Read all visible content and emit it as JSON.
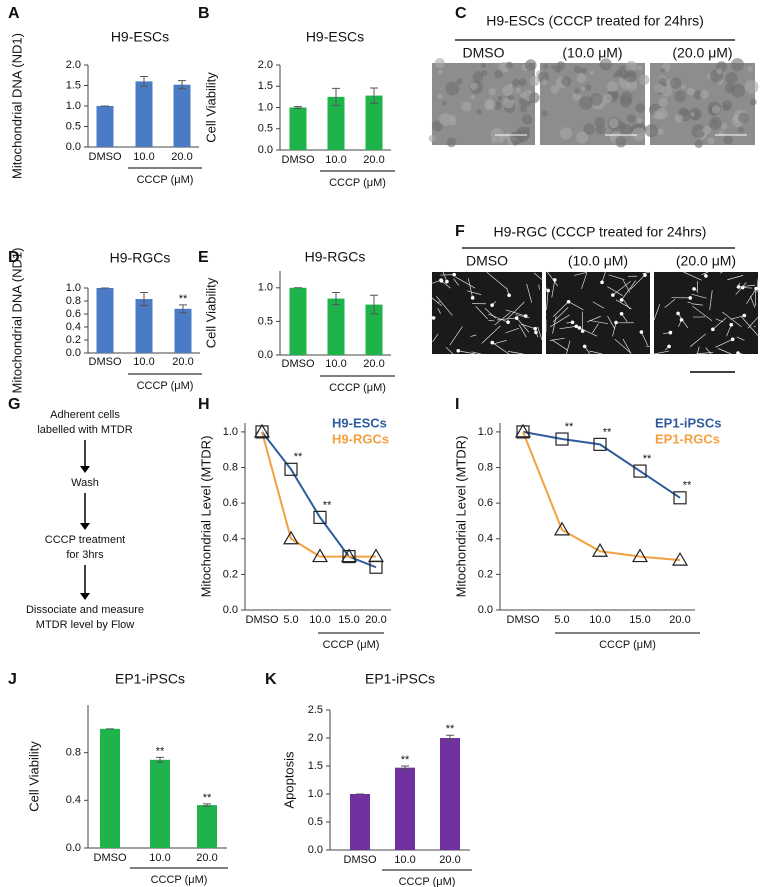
{
  "panels": [
    "A",
    "B",
    "C",
    "D",
    "E",
    "F",
    "G",
    "H",
    "I",
    "J",
    "K"
  ],
  "images": [
    {
      "title": "H9-ESCs (CCCP treated for 24hrs)",
      "labels": [
        "DMSO",
        "(10.0 μM)",
        "(20.0 μM)"
      ]
    },
    {
      "title": "H9-RGC (CCCP treated for 24hrs)",
      "labels": [
        "DMSO",
        "(10.0 μM)",
        "(20.0 μM)"
      ]
    }
  ],
  "flow": {
    "steps": [
      [
        "Adherent cells",
        "labelled with MTDR"
      ],
      [
        "Wash"
      ],
      [
        "CCCP treatment",
        "for 3hrs"
      ],
      [
        "Dissociate and measure",
        "MTDR level by Flow"
      ]
    ]
  },
  "chart_data": [
    {
      "type": "bar",
      "title": "H9-ESCs",
      "ylabel": "Mitochondrial DNA (ND1)",
      "categories": [
        "DMSO",
        "10.0",
        "20.0"
      ],
      "group_label": "CCCP (μM)",
      "values": [
        1.0,
        1.6,
        1.52
      ],
      "errors": [
        0.0,
        0.12,
        0.1
      ],
      "color": "#4a7bc4",
      "ylim": [
        0,
        2.0
      ],
      "yticks": [
        {
          "value": 0,
          "label": "0.0"
        },
        0.5,
        {
          "value": 1,
          "label": "1.0"
        },
        1.5,
        {
          "value": 2,
          "label": "2.0"
        }
      ]
    },
    {
      "type": "bar",
      "title": "H9-ESCs",
      "ylabel": "Cell Viability",
      "categories": [
        "DMSO",
        "10.0",
        "20.0"
      ],
      "group_label": "CCCP (μM)",
      "values": [
        1.0,
        1.25,
        1.28
      ],
      "errors": [
        0.02,
        0.2,
        0.18
      ],
      "color": "#1fb34b",
      "ylim": [
        0,
        2.0
      ],
      "yticks": [
        {
          "value": 0,
          "label": "0.0"
        },
        0.5,
        {
          "value": 1,
          "label": "1.0"
        },
        1.5,
        {
          "value": 2,
          "label": "2.0"
        }
      ]
    },
    {
      "type": "bar",
      "title": "H9-RGCs",
      "ylabel": "Mitochondrial DNA (ND1)",
      "categories": [
        "DMSO",
        "10.0",
        "20.0"
      ],
      "group_label": "CCCP (μM)",
      "values": [
        1.0,
        0.83,
        0.68
      ],
      "errors": [
        0.0,
        0.1,
        0.06
      ],
      "significance": [
        null,
        null,
        "**"
      ],
      "color": "#4a7bc4",
      "ylim": [
        0,
        1.0
      ],
      "yticks": [
        {
          "value": 0,
          "label": "0.0"
        },
        0.2,
        0.4,
        0.6,
        0.8,
        {
          "value": 1,
          "label": "1.0"
        }
      ]
    },
    {
      "type": "bar",
      "title": "H9-RGCs",
      "ylabel": "Cell Viability",
      "categories": [
        "DMSO",
        "10.0",
        "20.0"
      ],
      "group_label": "CCCP (μM)",
      "values": [
        1.0,
        0.84,
        0.75
      ],
      "errors": [
        0.0,
        0.09,
        0.14
      ],
      "color": "#1fb34b",
      "ylim": [
        0,
        1.25
      ],
      "yticks": [
        {
          "value": 0,
          "label": "0.0"
        },
        0.5,
        {
          "value": 1,
          "label": "1.0"
        }
      ]
    },
    {
      "type": "line",
      "ylabel": "Mitochondrial Level (MTDR)",
      "categories": [
        "DMSO",
        "5.0",
        "10.0",
        "15.0",
        "20.0"
      ],
      "group_label": "CCCP (μM)",
      "series": [
        {
          "name": "H9-ESCs",
          "color": "#2e5c9e",
          "marker": "square",
          "values": [
            1.0,
            0.79,
            0.52,
            0.3,
            0.24
          ],
          "significance": [
            null,
            "**",
            "**",
            null,
            null
          ]
        },
        {
          "name": "H9-RGCs",
          "color": "#f4a040",
          "marker": "triangle",
          "values": [
            1.0,
            0.4,
            0.3,
            0.3,
            0.3
          ]
        }
      ],
      "ylim": [
        0,
        1.05
      ],
      "yticks": [
        {
          "value": 0,
          "label": "0.0"
        },
        0.2,
        0.4,
        0.6,
        0.8,
        {
          "value": 1,
          "label": "1.0"
        }
      ],
      "legend": "top-right"
    },
    {
      "type": "line",
      "ylabel": "Mitochondrial Level (MTDR)",
      "categories": [
        "DMSO",
        "5.0",
        "10.0",
        "15.0",
        "20.0"
      ],
      "group_label": "CCCP (μM)",
      "series": [
        {
          "name": "EP1-iPSCs",
          "color": "#2e5c9e",
          "marker": "square",
          "values": [
            1.0,
            0.96,
            0.93,
            0.78,
            0.63
          ],
          "significance": [
            null,
            "**",
            "**",
            "**",
            "**"
          ]
        },
        {
          "name": "EP1-RGCs",
          "color": "#f4a040",
          "marker": "triangle",
          "values": [
            1.0,
            0.45,
            0.33,
            0.3,
            0.28
          ]
        }
      ],
      "ylim": [
        0,
        1.05
      ],
      "yticks": [
        {
          "value": 0,
          "label": "0.0"
        },
        0.2,
        0.4,
        0.6,
        0.8,
        {
          "value": 1,
          "label": "1.0"
        }
      ],
      "legend": "top-right"
    },
    {
      "type": "bar",
      "title": "EP1-iPSCs",
      "ylabel": "Cell Viability",
      "categories": [
        "DMSO",
        "10.0",
        "20.0"
      ],
      "group_label": "CCCP (μM)",
      "values": [
        1.0,
        0.74,
        0.36
      ],
      "errors": [
        0.0,
        0.02,
        0.01
      ],
      "significance": [
        null,
        "**",
        "**"
      ],
      "color": "#1fb34b",
      "ylim": [
        0,
        1.2
      ],
      "yticks": [
        {
          "value": 0,
          "label": "0.0"
        },
        0.4,
        0.8
      ]
    },
    {
      "type": "bar",
      "title": "EP1-iPSCs",
      "ylabel": "Apoptosis",
      "categories": [
        "DMSO",
        "10.0",
        "20.0"
      ],
      "group_label": "CCCP (μM)",
      "values": [
        1.0,
        1.47,
        2.0
      ],
      "errors": [
        0.0,
        0.03,
        0.05
      ],
      "significance": [
        null,
        "**",
        "**"
      ],
      "color": "#7030a0",
      "ylim": [
        0,
        2.5
      ],
      "yticks": [
        {
          "value": 0,
          "label": "0.0"
        },
        0.5,
        {
          "value": 1,
          "label": "1.0"
        },
        1.5,
        {
          "value": 2,
          "label": "2.0"
        },
        2.5
      ]
    }
  ]
}
